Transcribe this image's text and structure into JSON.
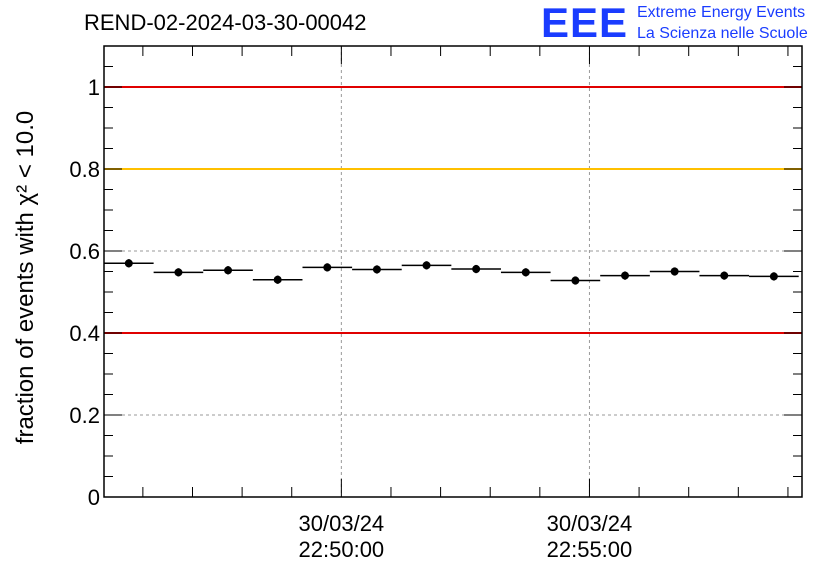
{
  "header": {
    "run_title": "REND-02-2024-03-30-00042",
    "logo_text": "EEE",
    "logo_line_1": "Extreme Energy Events",
    "logo_line_2": "La Scienza nelle Scuole",
    "logo_color": "#1a3cff"
  },
  "chart_data": {
    "type": "scatter",
    "title": "REND-02-2024-03-30-00042",
    "xlabel": "",
    "ylabel": "fraction of events with χ² < 10.0",
    "ylim": [
      0,
      1.1
    ],
    "yticks": [
      0,
      0.2,
      0.4,
      0.6,
      0.8,
      1
    ],
    "ytick_labels": [
      "0",
      "0.2",
      "0.4",
      "0.6",
      "0.8",
      "1"
    ],
    "xlim": [
      "2024-03-30 22:45:13",
      "2024-03-30 22:59:17"
    ],
    "xtick_labels": [
      {
        "time": "2024-03-30 22:50:00",
        "date": "30/03/24",
        "clock": "22:50:00"
      },
      {
        "time": "2024-03-30 22:55:00",
        "date": "30/03/24",
        "clock": "22:55:00"
      }
    ],
    "grid": true,
    "reference_lines": [
      {
        "y": 1.0,
        "color": "#e00000"
      },
      {
        "y": 0.8,
        "color": "#ffc000"
      },
      {
        "y": 0.4,
        "color": "#e00000"
      }
    ],
    "points": [
      {
        "x_start": "2024-03-30 22:45:13",
        "x_end": "2024-03-30 22:46:13",
        "y": 0.57,
        "err": 0.01
      },
      {
        "x_start": "2024-03-30 22:46:13",
        "x_end": "2024-03-30 22:47:13",
        "y": 0.548,
        "err": 0.01
      },
      {
        "x_start": "2024-03-30 22:47:13",
        "x_end": "2024-03-30 22:48:13",
        "y": 0.553,
        "err": 0.01
      },
      {
        "x_start": "2024-03-30 22:48:13",
        "x_end": "2024-03-30 22:49:13",
        "y": 0.53,
        "err": 0.01
      },
      {
        "x_start": "2024-03-30 22:49:13",
        "x_end": "2024-03-30 22:50:13",
        "y": 0.56,
        "err": 0.01
      },
      {
        "x_start": "2024-03-30 22:50:13",
        "x_end": "2024-03-30 22:51:13",
        "y": 0.555,
        "err": 0.01
      },
      {
        "x_start": "2024-03-30 22:51:13",
        "x_end": "2024-03-30 22:52:13",
        "y": 0.565,
        "err": 0.01
      },
      {
        "x_start": "2024-03-30 22:52:13",
        "x_end": "2024-03-30 22:53:13",
        "y": 0.556,
        "err": 0.01
      },
      {
        "x_start": "2024-03-30 22:53:13",
        "x_end": "2024-03-30 22:54:13",
        "y": 0.548,
        "err": 0.01
      },
      {
        "x_start": "2024-03-30 22:54:13",
        "x_end": "2024-03-30 22:55:13",
        "y": 0.528,
        "err": 0.01
      },
      {
        "x_start": "2024-03-30 22:55:13",
        "x_end": "2024-03-30 22:56:13",
        "y": 0.54,
        "err": 0.01
      },
      {
        "x_start": "2024-03-30 22:56:13",
        "x_end": "2024-03-30 22:57:13",
        "y": 0.55,
        "err": 0.01
      },
      {
        "x_start": "2024-03-30 22:57:13",
        "x_end": "2024-03-30 22:58:13",
        "y": 0.54,
        "err": 0.01
      },
      {
        "x_start": "2024-03-30 22:58:13",
        "x_end": "2024-03-30 22:59:13",
        "y": 0.538,
        "err": 0.01
      }
    ]
  }
}
